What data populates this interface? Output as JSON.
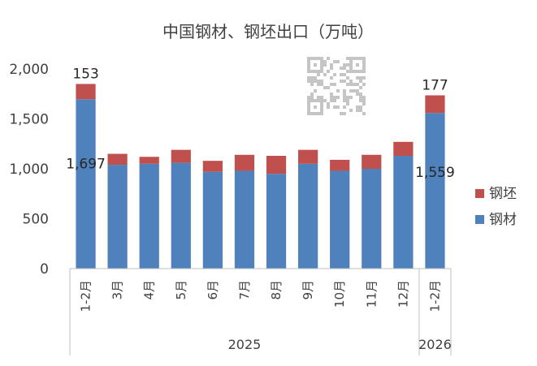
{
  "chart_data": {
    "type": "bar",
    "stacked": true,
    "title": "中国钢材、钢坯出口（万吨）",
    "categories": [
      "1-2月",
      "3月",
      "4月",
      "5月",
      "6月",
      "7月",
      "8月",
      "9月",
      "10月",
      "11月",
      "12月",
      "1-2月"
    ],
    "groups": [
      {
        "label": "2025",
        "span": 11
      },
      {
        "label": "2026",
        "span": 1
      }
    ],
    "series": [
      {
        "name": "钢材",
        "color": "#4f81bd",
        "values": [
          1697,
          1040,
          1050,
          1060,
          970,
          980,
          950,
          1050,
          980,
          1000,
          1130,
          1559
        ]
      },
      {
        "name": "钢坯",
        "color": "#c0504d",
        "values": [
          153,
          110,
          70,
          130,
          110,
          160,
          180,
          140,
          110,
          140,
          140,
          177
        ]
      }
    ],
    "data_labels": [
      {
        "series": 0,
        "index": 0,
        "text": "1,697"
      },
      {
        "series": 1,
        "index": 0,
        "text": "153"
      },
      {
        "series": 0,
        "index": 11,
        "text": "1,559"
      },
      {
        "series": 1,
        "index": 11,
        "text": "177"
      }
    ],
    "ylim": [
      0,
      2000
    ],
    "yticks": [
      "0",
      "500",
      "1,000",
      "1,500",
      "2,000"
    ],
    "ytick_values": [
      0,
      500,
      1000,
      1500,
      2000
    ],
    "legend_position": "right",
    "grid": false
  }
}
